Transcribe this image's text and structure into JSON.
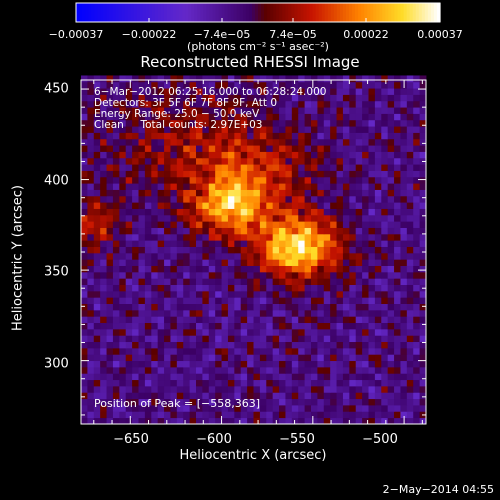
{
  "chart_data": {
    "type": "heatmap",
    "title": "Reconstructed RHESSI Image",
    "xlabel": "Heliocentric X (arcsec)",
    "ylabel": "Heliocentric Y (arcsec)",
    "xlim": [
      -677,
      -488
    ],
    "ylim": [
      265,
      455
    ],
    "x_ticks": [
      "−650",
      "−600",
      "−550",
      "−500"
    ],
    "x_tick_values": [
      -650,
      -600,
      -550,
      -500
    ],
    "y_ticks": [
      "300",
      "350",
      "400",
      "450"
    ],
    "y_tick_values": [
      300,
      350,
      400,
      450
    ],
    "colorbar": {
      "ticks": [
        "−0.00037",
        "−0.00022",
        "−7.4e−05",
        "7.4e−05",
        "0.00022",
        "0.00037"
      ],
      "range": [
        -0.00037,
        0.00037
      ],
      "unit_label": "(photons cm⁻² s⁻¹ asec⁻²)",
      "colormap": "blue-purple-red-yellow-white"
    },
    "annotation_lines": [
      "6−Mar−2012 06:25:16.000 to 06:28:24.000",
      "Detectors: 3F 5F 6F 7F 8F 9F, Att 0",
      "Energy Range: 25.0 − 50.0 keV",
      "Clean     Total counts: 2.97E+03"
    ],
    "peak_label": "Position of Peak = [−558,363]",
    "peak": {
      "x": -558,
      "y": 363,
      "value": 0.00037
    },
    "sources": [
      {
        "x": -558,
        "y": 363,
        "sx": 16,
        "sy": 12,
        "amp": 0.00037
      },
      {
        "x": -595,
        "y": 385,
        "sx": 14,
        "sy": 11,
        "amp": 0.00028
      },
      {
        "x": -580,
        "y": 405,
        "sx": 22,
        "sy": 14,
        "amp": 0.00014
      },
      {
        "x": -620,
        "y": 420,
        "sx": 30,
        "sy": 22,
        "amp": 0.0001
      },
      {
        "x": -670,
        "y": 375,
        "sx": 8,
        "sy": 10,
        "amp": 0.00016
      }
    ]
  },
  "date_stamp": "2−May−2014 04:55",
  "colors": {
    "background": "#000000",
    "text": "#ffffff"
  }
}
